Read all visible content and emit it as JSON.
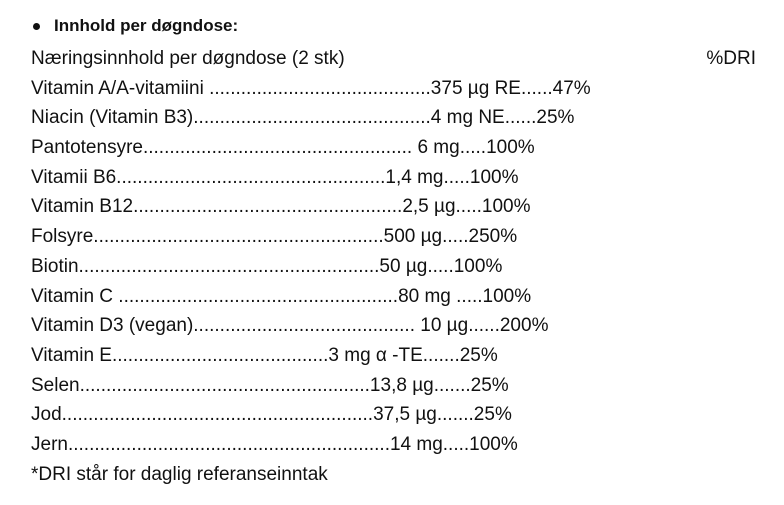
{
  "heading": "Innhold per døgndose:",
  "table_header": {
    "label": "Næringsinnhold per døgndose (2 stk)",
    "dri": "%DRI"
  },
  "rows": [
    "Vitamin A/A-vitamiini ..........................................375 µg RE......47%",
    "Niacin (Vitamin B3).............................................4 mg NE......25%",
    "Pantotensyre................................................... 6 mg.....100%",
    "Vitamii B6...................................................1,4 mg.....100%",
    "Vitamin B12...................................................2,5 µg.....100%",
    "Folsyre.......................................................500 µg.....250%",
    "Biotin.........................................................50 µg.....100%",
    "Vitamin C .....................................................80 mg .....100%",
    "Vitamin D3 (vegan).......................................... 10 µg......200%",
    "Vitamin E.........................................3 mg α -TE.......25%",
    "Selen.......................................................13,8 µg.......25%",
    "Jod...........................................................37,5 µg.......25%",
    "Jern.............................................................14 mg.....100%"
  ],
  "footnote": "*DRI står for daglig referanseinntak"
}
